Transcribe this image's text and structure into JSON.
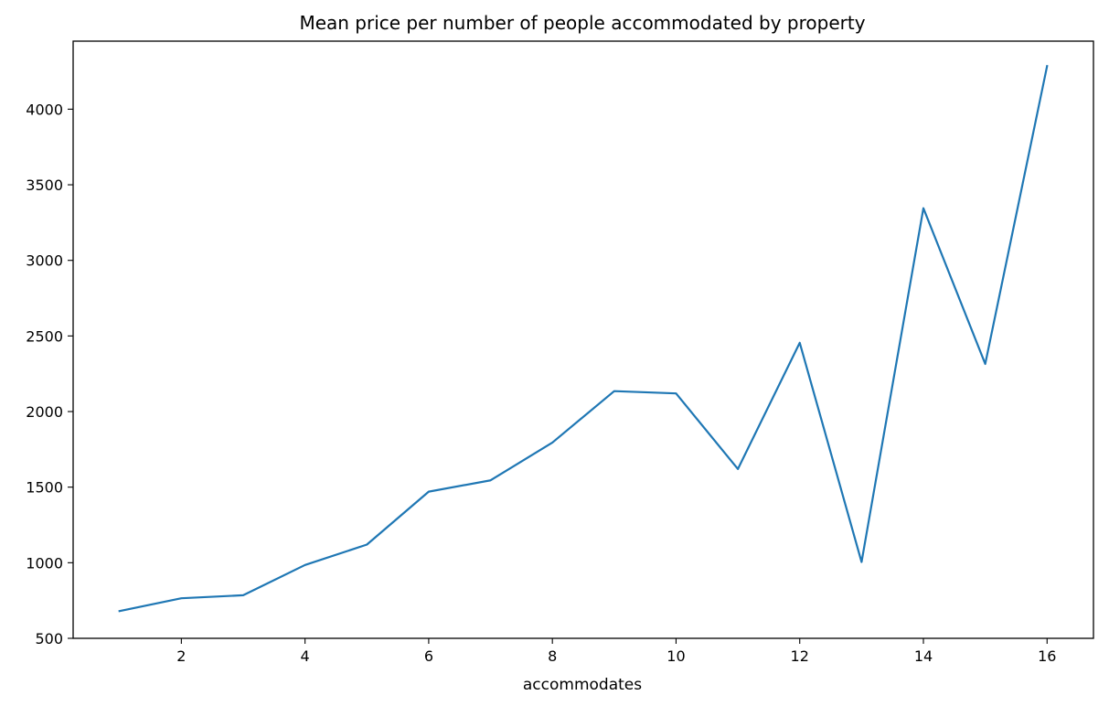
{
  "chart_data": {
    "type": "line",
    "title": "Mean price per number of people accommodated by property",
    "xlabel": "accommodates",
    "ylabel": "",
    "xlim": [
      0.25,
      16.75
    ],
    "ylim": [
      500,
      4450
    ],
    "xticks": [
      2,
      4,
      6,
      8,
      10,
      12,
      14,
      16
    ],
    "yticks": [
      500,
      1000,
      1500,
      2000,
      2500,
      3000,
      3500,
      4000
    ],
    "grid": false,
    "series": [
      {
        "color": "#1f77b4",
        "x": [
          1,
          2,
          3,
          4,
          5,
          6,
          7,
          8,
          9,
          10,
          11,
          12,
          13,
          14,
          15,
          16
        ],
        "y": [
          680,
          765,
          785,
          985,
          1120,
          1470,
          1545,
          1795,
          2135,
          2120,
          1620,
          2455,
          1005,
          3345,
          2315,
          4285
        ]
      }
    ]
  }
}
